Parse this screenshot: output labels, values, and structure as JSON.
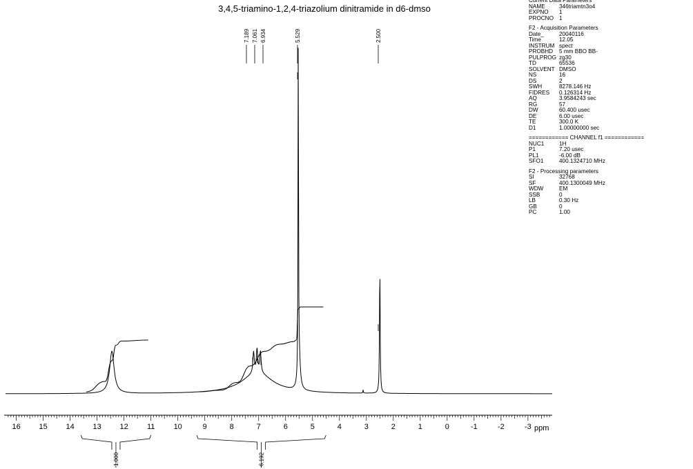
{
  "chart_data": {
    "type": "line",
    "title": "3,4,5-triamino-1,2,4-triazolium dinitramide in d6-dmso",
    "xlabel": "ppm",
    "xlim": [
      16.4,
      -3.9
    ],
    "x_reversed": true,
    "x_ticks": [
      16,
      15,
      14,
      13,
      12,
      11,
      10,
      9,
      8,
      7,
      6,
      5,
      4,
      3,
      2,
      1,
      0,
      -1,
      -2,
      -3
    ],
    "x_tick_labels": [
      "16",
      "15",
      "14",
      "13",
      "12",
      "11",
      "10",
      "9",
      "8",
      "7",
      "6",
      "5",
      "4",
      "3",
      "2",
      "1",
      "0",
      "-1",
      "-2",
      "-3"
    ],
    "grid": false,
    "peaks": [
      {
        "shift": 12.45,
        "relative_height": 0.12,
        "width": 0.1
      },
      {
        "shift": 7.189,
        "relative_height": 0.06,
        "width": 0.03
      },
      {
        "shift": 7.061,
        "relative_height": 0.065,
        "width": 0.03
      },
      {
        "shift": 6.934,
        "relative_height": 0.06,
        "width": 0.03
      },
      {
        "shift": 7.05,
        "relative_height": 0.06,
        "width": 0.7
      },
      {
        "shift": 5.529,
        "relative_height": 1.0,
        "width": 0.01
      },
      {
        "shift": 5.5,
        "relative_height": 0.1,
        "width": 0.05
      },
      {
        "shift": 3.12,
        "relative_height": 0.01,
        "width": 0.01
      },
      {
        "shift": 2.5,
        "relative_height": 0.36,
        "width": 0.015
      }
    ],
    "peak_labels": [
      "7.189",
      "7.061",
      "6.934",
      "5.529",
      "2.500"
    ],
    "integral_curves": [
      {
        "start": 13.4,
        "end": 11.1,
        "rise": [
          [
            13.4,
            0
          ],
          [
            12.7,
            0.2
          ],
          [
            12.45,
            0.6
          ],
          [
            12.3,
            0.9
          ],
          [
            12.1,
            0.98
          ],
          [
            11.1,
            1
          ]
        ]
      },
      {
        "start": 9.2,
        "end": 4.6,
        "rise": [
          [
            9.2,
            0
          ],
          [
            8.4,
            0.03
          ],
          [
            7.8,
            0.18
          ],
          [
            7.3,
            0.5
          ],
          [
            6.8,
            0.78
          ],
          [
            6.2,
            0.92
          ],
          [
            5.7,
            0.97
          ],
          [
            5.6,
            1.0
          ],
          [
            5.53,
            1.6
          ],
          [
            5.45,
            1.64
          ],
          [
            4.6,
            1.64
          ]
        ]
      }
    ],
    "integrals": [
      {
        "from": 13.6,
        "to": 11.0,
        "value": "1.000"
      },
      {
        "from": 9.3,
        "to": 4.5,
        "value": "6.192"
      }
    ]
  },
  "parameters": {
    "current": {
      "heading": "Current Data Parameters",
      "rows": [
        {
          "name": "NAME",
          "value": "346triamtn3o4"
        },
        {
          "name": "EXPNO",
          "value": "1"
        },
        {
          "name": "PROCNO",
          "value": "1"
        }
      ]
    },
    "acquisition": {
      "heading": "F2 - Acquisition Parameters",
      "rows": [
        {
          "name": "Date_",
          "value": "20040116"
        },
        {
          "name": "Time",
          "value": "12.05"
        },
        {
          "name": "INSTRUM",
          "value": "spect"
        },
        {
          "name": "PROBHD",
          "value": "5 mm BBO BB-"
        },
        {
          "name": "PULPROG",
          "value": "zg30"
        },
        {
          "name": "TD",
          "value": "65536"
        },
        {
          "name": "SOLVENT",
          "value": "DMSO"
        },
        {
          "name": "NS",
          "value": "16"
        },
        {
          "name": "DS",
          "value": "2"
        },
        {
          "name": "SWH",
          "value": "8278.146 Hz"
        },
        {
          "name": "FIDRES",
          "value": "0.126314 Hz"
        },
        {
          "name": "AQ",
          "value": "3.9584243 sec"
        },
        {
          "name": "RG",
          "value": "57"
        },
        {
          "name": "DW",
          "value": "60.400 usec"
        },
        {
          "name": "DE",
          "value": "6.00 usec"
        },
        {
          "name": "TE",
          "value": "300.0 K"
        },
        {
          "name": "D1",
          "value": "1.00000000 sec"
        }
      ]
    },
    "channel": {
      "heading": "============ CHANNEL f1 ============",
      "rows": [
        {
          "name": "NUC1",
          "value": "1H"
        },
        {
          "name": "P1",
          "value": "7.20 usec"
        },
        {
          "name": "PL1",
          "value": "-6.00 dB"
        },
        {
          "name": "SFO1",
          "value": "400.1324710 MHz"
        }
      ]
    },
    "processing": {
      "heading": "F2 - Processing parameters",
      "rows": [
        {
          "name": "SI",
          "value": "32768"
        },
        {
          "name": "SF",
          "value": "400.1300049 MHz"
        },
        {
          "name": "WDW",
          "value": "EM"
        },
        {
          "name": "SSB",
          "value": "0"
        },
        {
          "name": "LB",
          "value": "0.30 Hz"
        },
        {
          "name": "GB",
          "value": "0"
        },
        {
          "name": "PC",
          "value": "1.00"
        }
      ]
    }
  }
}
